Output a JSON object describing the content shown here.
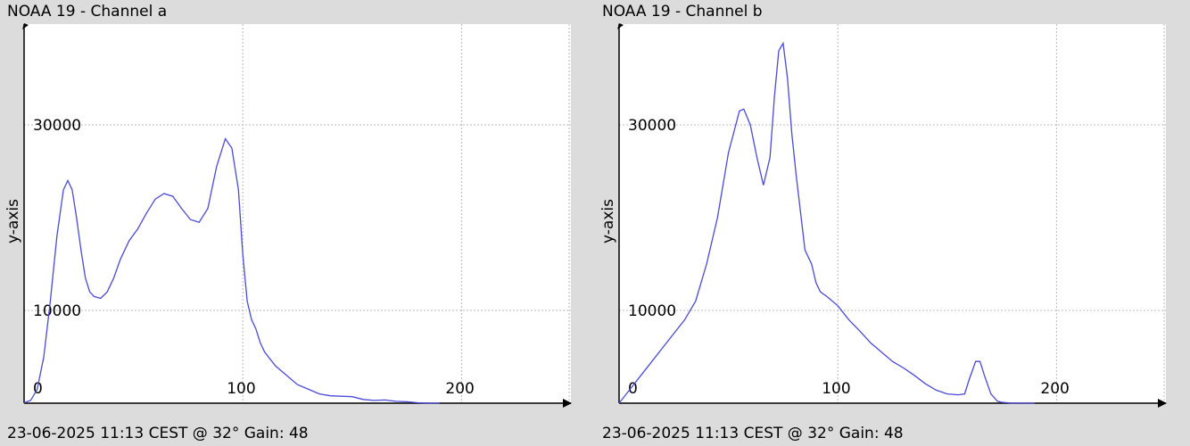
{
  "charts": [
    {
      "title": "NOAA 19 - Channel a",
      "footer": "23-06-2025 11:13 CEST @ 32° Gain: 48",
      "chart_data": {
        "type": "line",
        "title": "NOAA 19 - Channel a",
        "xlabel": "",
        "ylabel": "y-axis",
        "xlim": [
          0,
          250
        ],
        "ylim": [
          0,
          40000
        ],
        "x_ticks": [
          0,
          100,
          200
        ],
        "y_ticks": [
          10000,
          30000
        ],
        "grid": true,
        "color": "#4a4ad8",
        "series": [
          {
            "x": [
              0,
              3,
              6,
              9,
              12,
              15,
              18,
              20,
              22,
              24,
              26,
              28,
              30,
              32,
              35,
              38,
              41,
              44,
              48,
              52,
              56,
              60,
              64,
              68,
              72,
              76,
              80,
              84,
              88,
              92,
              95,
              98,
              100,
              102,
              104,
              106,
              108,
              110,
              115,
              120,
              125,
              130,
              135,
              140,
              145,
              150,
              155,
              160,
              165,
              170,
              175,
              180,
              185,
              190
            ],
            "y": [
              50,
              300,
              1500,
              5000,
              11000,
              18000,
              23000,
              24000,
              23000,
              20000,
              16500,
              13500,
              12000,
              11500,
              11300,
              12000,
              13500,
              15500,
              17500,
              18800,
              20500,
              22000,
              22600,
              22300,
              21000,
              19800,
              19500,
              21000,
              25500,
              28500,
              27500,
              23000,
              16000,
              11000,
              9000,
              8000,
              6500,
              5500,
              4000,
              3000,
              2000,
              1500,
              1000,
              800,
              750,
              700,
              400,
              300,
              350,
              200,
              150,
              50,
              0,
              0
            ]
          }
        ]
      }
    },
    {
      "title": "NOAA 19 - Channel b",
      "footer": "23-06-2025 11:13 CEST @ 32° Gain: 48",
      "chart_data": {
        "type": "line",
        "title": "NOAA 19 - Channel b",
        "xlabel": "",
        "ylabel": "y-axis",
        "xlim": [
          0,
          250
        ],
        "ylim": [
          0,
          40000
        ],
        "x_ticks": [
          0,
          100,
          200
        ],
        "y_ticks": [
          10000,
          30000
        ],
        "grid": true,
        "color": "#4a4ad8",
        "series": [
          {
            "x": [
              0,
              5,
              10,
              15,
              20,
              25,
              30,
              35,
              40,
              45,
              50,
              55,
              57,
              60,
              63,
              66,
              69,
              71,
              73,
              75,
              77,
              79,
              81,
              83,
              85,
              88,
              90,
              92,
              95,
              100,
              105,
              110,
              115,
              120,
              125,
              130,
              135,
              140,
              145,
              150,
              155,
              158,
              160,
              163,
              165,
              167,
              170,
              173,
              175,
              180,
              185,
              190
            ],
            "y": [
              0,
              1500,
              3000,
              4500,
              6000,
              7500,
              9000,
              11000,
              15000,
              20000,
              27000,
              31500,
              31700,
              30000,
              26500,
              23500,
              26500,
              33000,
              38000,
              38800,
              35000,
              29000,
              24500,
              20500,
              16500,
              15000,
              13000,
              12000,
              11500,
              10500,
              9000,
              7800,
              6500,
              5500,
              4500,
              3800,
              3000,
              2100,
              1400,
              1000,
              900,
              1000,
              2500,
              4500,
              4500,
              3000,
              1000,
              200,
              100,
              0,
              0,
              0
            ]
          }
        ]
      }
    }
  ]
}
